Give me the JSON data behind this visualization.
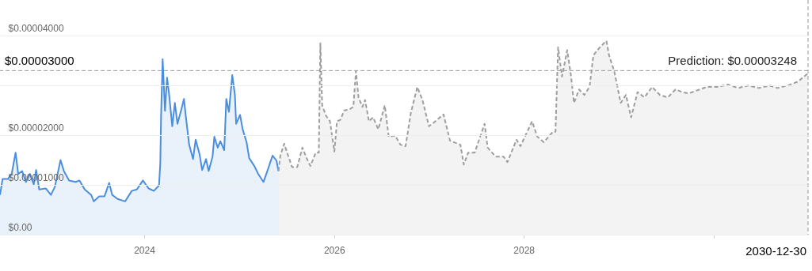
{
  "chart_data": {
    "type": "area",
    "series": [
      {
        "color": "#4a8ede",
        "x": [
          "2022-06-25",
          "2022-07-05",
          "2022-07-25",
          "2022-08-09",
          "2022-08-24",
          "2022-09-03",
          "2022-09-18",
          "2022-10-03",
          "2022-10-18",
          "2022-11-02",
          "2022-11-11",
          "2022-11-23",
          "2022-12-18",
          "2023-01-07",
          "2023-01-22",
          "2023-02-13",
          "2023-02-26",
          "2023-03-18",
          "2023-04-12",
          "2023-04-27",
          "2023-05-17",
          "2023-06-11",
          "2023-06-21",
          "2023-07-12",
          "2023-08-01",
          "2023-08-19",
          "2023-08-31",
          "2023-09-20",
          "2023-10-20",
          "2023-11-14",
          "2023-12-04",
          "2023-12-27",
          "2024-01-18",
          "2024-02-07",
          "2024-02-27",
          "2024-03-03",
          "2024-03-06",
          "2024-03-12",
          "2024-03-21",
          "2024-03-29",
          "2024-04-06",
          "2024-04-18",
          "2024-04-28",
          "2024-05-08",
          "2024-05-23",
          "2024-06-02",
          "2024-06-09",
          "2024-06-22",
          "2024-07-07",
          "2024-07-17",
          "2024-08-01",
          "2024-08-11",
          "2024-08-26",
          "2024-09-05",
          "2024-09-20",
          "2024-09-27",
          "2024-10-10",
          "2024-10-20",
          "2024-11-04",
          "2024-11-12",
          "2024-11-22",
          "2024-12-05",
          "2024-12-15",
          "2024-12-20",
          "2025-01-04",
          "2025-01-14",
          "2025-01-29",
          "2025-02-08",
          "2025-02-28",
          "2025-03-15",
          "2025-04-04",
          "2025-04-19",
          "2025-05-09",
          "2025-05-24",
          "2025-06-01"
        ],
        "values": [
          8e-06,
          1.12e-05,
          1.12e-05,
          1.22e-05,
          1.65e-05,
          1.22e-05,
          1.28e-05,
          1.06e-05,
          1.22e-05,
          1.01e-05,
          1.3e-05,
          9.1e-06,
          9.3e-06,
          8e-06,
          9.6e-06,
          1.5e-05,
          1.28e-05,
          1.09e-05,
          1.06e-05,
          1.09e-05,
          9.1e-06,
          8e-06,
          6.7e-06,
          7.7e-06,
          7.7e-06,
          1.04e-05,
          8e-06,
          7.2e-06,
          6.7e-06,
          8.8e-06,
          9.1e-06,
          1.09e-05,
          9.3e-06,
          8.8e-06,
          9.9e-06,
          1.44e-05,
          2.39e-05,
          3.53e-05,
          2.49e-05,
          3.16e-05,
          2.81e-05,
          2.18e-05,
          2.65e-05,
          2.23e-05,
          2.52e-05,
          2.73e-05,
          2.39e-05,
          1.81e-05,
          1.52e-05,
          1.91e-05,
          1.62e-05,
          1.3e-05,
          1.52e-05,
          1.28e-05,
          1.57e-05,
          1.97e-05,
          1.75e-05,
          1.88e-05,
          1.7e-05,
          2.73e-05,
          2.47e-05,
          3.21e-05,
          2.81e-05,
          2.23e-05,
          2.41e-05,
          2.12e-05,
          1.86e-05,
          1.54e-05,
          1.38e-05,
          1.22e-05,
          1.06e-05,
          1.28e-05,
          1.59e-05,
          1.49e-05,
          1.28e-05
        ]
      },
      {
        "color": "#9e9e9e",
        "line_style": "dashed",
        "x": [
          "2025-06-01",
          "2025-06-08",
          "2025-06-23",
          "2025-07-08",
          "2025-07-23",
          "2025-08-12",
          "2025-09-01",
          "2025-09-17",
          "2025-10-02",
          "2025-10-22",
          "2025-11-03",
          "2025-11-09",
          "2025-11-16",
          "2025-12-01",
          "2025-12-16",
          "2026-01-02",
          "2026-01-12",
          "2026-01-25",
          "2026-02-09",
          "2026-03-01",
          "2026-03-16",
          "2026-03-26",
          "2026-04-05",
          "2026-04-20",
          "2026-04-30",
          "2026-05-15",
          "2026-05-31",
          "2026-06-20",
          "2026-07-15",
          "2026-07-30",
          "2026-08-24",
          "2026-09-13",
          "2026-10-03",
          "2026-10-23",
          "2026-11-17",
          "2026-12-07",
          "2027-01-01",
          "2027-01-21",
          "2027-02-26",
          "2027-03-23",
          "2027-05-02",
          "2027-05-15",
          "2027-06-01",
          "2027-06-26",
          "2027-08-03",
          "2027-08-15",
          "2027-09-14",
          "2027-10-15",
          "2027-10-30",
          "2027-12-04",
          "2027-12-19",
          "2028-02-02",
          "2028-02-22",
          "2028-03-18",
          "2028-04-22",
          "2028-05-02",
          "2028-05-12",
          "2028-05-27",
          "2028-06-16",
          "2028-07-01",
          "2028-07-12",
          "2028-08-01",
          "2028-08-21",
          "2028-09-10",
          "2028-09-25",
          "2028-10-20",
          "2028-11-14",
          "2028-11-24",
          "2028-12-14",
          "2029-01-08",
          "2029-01-28",
          "2029-02-17",
          "2029-03-14",
          "2029-04-09",
          "2029-05-09",
          "2029-06-08",
          "2029-07-08",
          "2029-08-07",
          "2029-09-01",
          "2029-09-26",
          "2029-12-04",
          "2030-01-15",
          "2030-02-24",
          "2030-04-05",
          "2030-05-15",
          "2030-06-24",
          "2030-08-04",
          "2030-09-03",
          "2030-10-13",
          "2030-11-22",
          "2030-12-30"
        ],
        "values": [
          1.28e-05,
          1.59e-05,
          1.83e-05,
          1.59e-05,
          1.36e-05,
          1.36e-05,
          1.75e-05,
          1.54e-05,
          1.38e-05,
          1.65e-05,
          1.65e-05,
          3.85e-05,
          2.6e-05,
          2.39e-05,
          2.28e-05,
          1.67e-05,
          2.28e-05,
          2.31e-05,
          2.5e-05,
          2.52e-05,
          2.57e-05,
          3.29e-05,
          2.76e-05,
          2.57e-05,
          2.71e-05,
          2.28e-05,
          2.36e-05,
          2.12e-05,
          2.6e-05,
          1.97e-05,
          1.99e-05,
          1.81e-05,
          1.78e-05,
          2.44e-05,
          2.97e-05,
          2.71e-05,
          2.18e-05,
          2.26e-05,
          2.42e-05,
          1.89e-05,
          1.81e-05,
          1.41e-05,
          1.65e-05,
          1.65e-05,
          2.23e-05,
          1.75e-05,
          1.57e-05,
          1.57e-05,
          1.46e-05,
          1.91e-05,
          1.78e-05,
          2.28e-05,
          1.97e-05,
          1.86e-05,
          2.07e-05,
          2.07e-05,
          3.77e-05,
          3.18e-05,
          3.71e-05,
          3.18e-05,
          2.65e-05,
          2.92e-05,
          2.81e-05,
          2.97e-05,
          3.61e-05,
          3.77e-05,
          3.9e-05,
          3.61e-05,
          3.29e-05,
          2.65e-05,
          2.81e-05,
          2.36e-05,
          2.87e-05,
          2.76e-05,
          2.97e-05,
          2.81e-05,
          2.76e-05,
          2.92e-05,
          2.87e-05,
          2.84e-05,
          2.97e-05,
          2.97e-05,
          3.02e-05,
          2.95e-05,
          3e-05,
          2.95e-05,
          3e-05,
          2.95e-05,
          3e-05,
          3.08e-05,
          3.248e-05
        ]
      }
    ],
    "xlim": [
      "2022-06-25",
      "2030-12-30"
    ],
    "xticks": [
      "2024",
      "2026",
      "2028",
      {
        "value": "2030",
        "label": null
      }
    ],
    "ylim": [
      0,
      4.72e-05
    ],
    "yticks": [
      {
        "value": 0,
        "label": "$0.00"
      },
      {
        "value": 1e-05,
        "label": "$0.00001000"
      },
      {
        "value": 2e-05,
        "label": "$0.00002000"
      },
      {
        "value": 3e-05,
        "label": null
      },
      {
        "value": 4e-05,
        "label": "$0.00004000"
      }
    ],
    "grid": "y",
    "ref_lines": [
      {
        "axis": "y",
        "value": 3.3e-05,
        "line_style": "dashed"
      },
      {
        "axis": "x",
        "value": "2030-12-30",
        "label": "2030-12-30",
        "line_style": "dashed"
      }
    ],
    "annotations": [
      "$0.00003000",
      {
        "text": "Prediction: $0.00003248",
        "x": "2030-12-30",
        "y": 3.248e-05
      }
    ]
  }
}
